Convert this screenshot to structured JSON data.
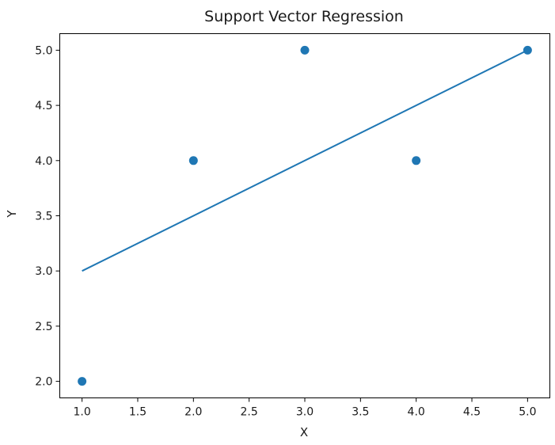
{
  "chart_data": {
    "type": "scatter",
    "title": "Support Vector Regression",
    "xlabel": "X",
    "ylabel": "Y",
    "xlim": [
      0.8,
      5.2
    ],
    "ylim": [
      1.85,
      5.15
    ],
    "x_ticks": [
      "1.0",
      "1.5",
      "2.0",
      "2.5",
      "3.0",
      "3.5",
      "4.0",
      "4.5",
      "5.0"
    ],
    "y_ticks": [
      "2.0",
      "2.5",
      "3.0",
      "3.5",
      "4.0",
      "4.5",
      "5.0"
    ],
    "grid": false,
    "colors": {
      "series": "#1f77b4",
      "axes": "#000000",
      "text": "#1a1a1a"
    },
    "series": [
      {
        "type": "scatter",
        "points": [
          {
            "x": 1.0,
            "y": 2.0
          },
          {
            "x": 2.0,
            "y": 4.0
          },
          {
            "x": 3.0,
            "y": 5.0
          },
          {
            "x": 4.0,
            "y": 4.0
          },
          {
            "x": 5.0,
            "y": 5.0
          }
        ]
      },
      {
        "type": "line",
        "points": [
          {
            "x": 1.0,
            "y": 3.0
          },
          {
            "x": 5.0,
            "y": 5.0
          }
        ]
      }
    ]
  }
}
